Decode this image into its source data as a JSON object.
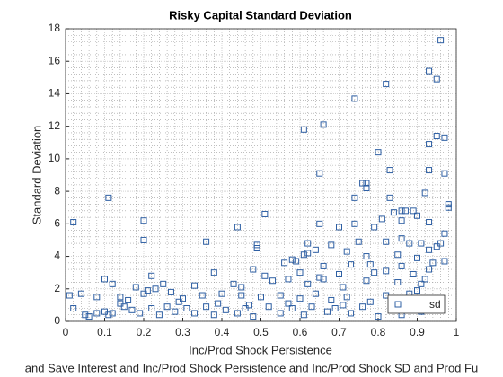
{
  "chart_data": {
    "type": "scatter",
    "title": "Risky Capital Standard Deviation",
    "xlabel": "Inc/Prod Shock Persistence",
    "ylabel": "Standard Deviation",
    "footnote": "and Save Interest and Inc/Prod Shock Persistence and Inc/Prod Shock SD and Prod Fu",
    "xlim": [
      0,
      1
    ],
    "ylim": [
      0,
      18
    ],
    "xticks": [
      0,
      0.1,
      0.2,
      0.3,
      0.4,
      0.5,
      0.6,
      0.7,
      0.8,
      0.9,
      1
    ],
    "yticks": [
      0,
      2,
      4,
      6,
      8,
      10,
      12,
      14,
      16,
      18
    ],
    "grid": true,
    "minor_grid": true,
    "legend": "southeast",
    "series": [
      {
        "name": "sd",
        "color": "#2e5fa3",
        "x": [
          0.96,
          0.93,
          0.95,
          0.82,
          0.74,
          0.66,
          0.61,
          0.95,
          0.97,
          0.8,
          0.93,
          0.83,
          0.93,
          0.65,
          0.97,
          0.76,
          0.77,
          0.77,
          0.74,
          0.83,
          0.92,
          0.98,
          0.98,
          0.11,
          0.51,
          0.86,
          0.87,
          0.89,
          0.9,
          0.81,
          0.84,
          0.02,
          0.2,
          0.44,
          0.65,
          0.7,
          0.74,
          0.79,
          0.86,
          0.93,
          0.97,
          0.2,
          0.36,
          0.62,
          0.64,
          0.68,
          0.75,
          0.82,
          0.86,
          0.88,
          0.91,
          0.93,
          0.95,
          0.96,
          0.49,
          0.49,
          0.61,
          0.62,
          0.72,
          0.77,
          0.85,
          0.9,
          0.58,
          0.59,
          0.56,
          0.66,
          0.73,
          0.78,
          0.86,
          0.93,
          0.94,
          0.97,
          0.38,
          0.48,
          0.51,
          0.6,
          0.7,
          0.79,
          0.82,
          0.89,
          0.92,
          0.43,
          0.45,
          0.53,
          0.57,
          0.62,
          0.65,
          0.66,
          0.71,
          0.77,
          0.85,
          0.91,
          0.22,
          0.25,
          0.33,
          0.1,
          0.12,
          0.18,
          0.21,
          0.23,
          0.01,
          0.04,
          0.08,
          0.14,
          0.16,
          0.2,
          0.27,
          0.3,
          0.35,
          0.4,
          0.45,
          0.5,
          0.55,
          0.6,
          0.64,
          0.68,
          0.72,
          0.78,
          0.82,
          0.88,
          0.9,
          0.02,
          0.05,
          0.08,
          0.1,
          0.11,
          0.12,
          0.15,
          0.17,
          0.19,
          0.22,
          0.24,
          0.26,
          0.28,
          0.31,
          0.33,
          0.36,
          0.38,
          0.41,
          0.44,
          0.46,
          0.48,
          0.52,
          0.55,
          0.58,
          0.61,
          0.63,
          0.67,
          0.69,
          0.73,
          0.76,
          0.8,
          0.84,
          0.86,
          0.88,
          0.91,
          0.06,
          0.14,
          0.29,
          0.39,
          0.47,
          0.57,
          0.71
        ],
        "values": [
          17.3,
          15.4,
          14.9,
          14.6,
          13.7,
          12.1,
          11.8,
          11.4,
          11.3,
          10.4,
          10.9,
          9.3,
          9.3,
          9.1,
          9.1,
          8.5,
          8.5,
          8.2,
          7.6,
          7.6,
          7.9,
          7.2,
          7.0,
          7.6,
          6.6,
          6.8,
          6.8,
          6.8,
          6.5,
          6.3,
          6.7,
          6.1,
          6.2,
          5.8,
          6.0,
          5.8,
          6.0,
          5.8,
          6.2,
          6.1,
          5.4,
          5.0,
          4.9,
          4.8,
          4.4,
          4.7,
          4.9,
          4.9,
          5.1,
          4.8,
          4.8,
          4.4,
          4.6,
          4.8,
          4.5,
          4.7,
          4.1,
          4.2,
          4.3,
          4.0,
          4.1,
          3.9,
          3.8,
          3.7,
          3.6,
          3.4,
          3.5,
          3.5,
          3.4,
          3.2,
          3.6,
          3.7,
          3.0,
          3.2,
          2.8,
          3.0,
          2.9,
          3.0,
          3.1,
          2.9,
          2.6,
          2.3,
          2.1,
          2.5,
          2.6,
          2.3,
          2.7,
          2.6,
          2.1,
          2.5,
          2.4,
          2.3,
          2.8,
          2.3,
          2.2,
          2.6,
          2.3,
          2.1,
          1.9,
          2.0,
          1.6,
          1.7,
          1.5,
          1.5,
          1.3,
          1.7,
          1.8,
          1.4,
          1.6,
          1.7,
          1.6,
          1.5,
          1.6,
          1.4,
          1.7,
          1.3,
          1.5,
          1.2,
          1.6,
          1.7,
          1.9,
          0.8,
          0.4,
          0.5,
          0.6,
          0.4,
          0.5,
          0.9,
          0.7,
          0.5,
          0.8,
          0.4,
          0.9,
          0.6,
          0.8,
          0.5,
          0.9,
          0.4,
          0.7,
          0.5,
          0.8,
          0.3,
          0.9,
          0.5,
          0.8,
          0.4,
          0.9,
          0.6,
          0.8,
          0.5,
          0.9,
          0.3,
          0.7,
          0.4,
          1.0,
          0.6,
          0.3,
          1.1,
          1.2,
          1.1,
          1.0,
          1.1,
          1.0
        ]
      }
    ]
  }
}
